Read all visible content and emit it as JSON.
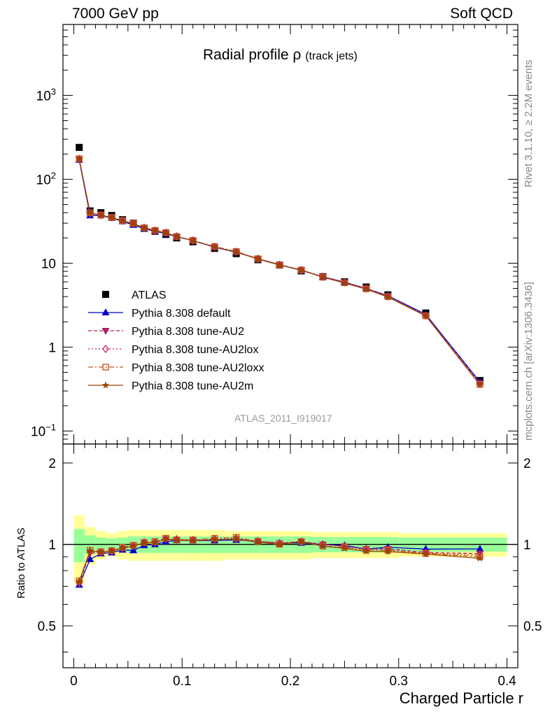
{
  "header": {
    "left": "7000 GeV pp",
    "right": "Soft QCD"
  },
  "plot_title": {
    "main": "Radial profile ρ",
    "sub": "(track jets)"
  },
  "watermark": "ATLAS_2011_I919017",
  "side_labels": {
    "rivet": "Rivet 3.1.10, ≥ 2.2M events",
    "ref": "mcplots.cern.ch [arXiv:1306.3436]"
  },
  "chart_data": {
    "type": "line",
    "xlabel": "Charged Particle r",
    "ylabel_ratio": "Ratio to ATLAS",
    "x_ticks": [
      "0",
      "0.1",
      "0.2",
      "0.3",
      "0.4"
    ],
    "xlim": [
      -0.01,
      0.41
    ],
    "main_ylim": [
      0.07,
      7000
    ],
    "main_yscale": "log",
    "main_y_ticks": [
      "10",
      "1",
      "10",
      "10",
      "10"
    ],
    "main_y_tick_exp": [
      "−1",
      "",
      "",
      "2",
      "3"
    ],
    "main_y_tick_values": [
      0.1,
      1,
      10,
      100,
      1000
    ],
    "ratio_ylim": [
      0.35,
      2.35
    ],
    "ratio_yscale": "log",
    "ratio_y_ticks": [
      "0.5",
      "1",
      "2"
    ],
    "x": [
      0.005,
      0.015,
      0.025,
      0.035,
      0.045,
      0.055,
      0.065,
      0.075,
      0.085,
      0.095,
      0.11,
      0.13,
      0.15,
      0.17,
      0.19,
      0.21,
      0.23,
      0.25,
      0.27,
      0.29,
      0.325,
      0.375
    ],
    "x_bins": [
      [
        0,
        0.01
      ],
      [
        0.01,
        0.02
      ],
      [
        0.02,
        0.03
      ],
      [
        0.03,
        0.04
      ],
      [
        0.04,
        0.05
      ],
      [
        0.05,
        0.06
      ],
      [
        0.06,
        0.07
      ],
      [
        0.07,
        0.08
      ],
      [
        0.08,
        0.09
      ],
      [
        0.09,
        0.1
      ],
      [
        0.1,
        0.12
      ],
      [
        0.12,
        0.14
      ],
      [
        0.14,
        0.16
      ],
      [
        0.16,
        0.18
      ],
      [
        0.18,
        0.2
      ],
      [
        0.2,
        0.22
      ],
      [
        0.22,
        0.24
      ],
      [
        0.24,
        0.26
      ],
      [
        0.26,
        0.28
      ],
      [
        0.28,
        0.3
      ],
      [
        0.3,
        0.35
      ],
      [
        0.35,
        0.4
      ]
    ],
    "series": [
      {
        "name": "ATLAS",
        "color": "#000000",
        "marker": "square",
        "values": [
          240,
          42,
          40,
          37,
          33,
          30,
          26,
          24,
          22,
          20,
          18,
          15,
          13,
          11,
          9.5,
          8.1,
          6.9,
          6.0,
          5.2,
          4.2,
          2.55,
          0.4
        ]
      },
      {
        "name": "Pythia 8.308 default",
        "color": "#0000cc",
        "marker": "triangle-up",
        "dash": "",
        "values": [
          170,
          37,
          37,
          34.5,
          31.5,
          28.5,
          25.8,
          24,
          22.5,
          20.7,
          18.6,
          15.5,
          13.5,
          11.3,
          9.6,
          8.2,
          6.9,
          5.95,
          5.0,
          4.1,
          2.45,
          0.385
        ]
      },
      {
        "name": "Pythia 8.308 tune-AU2",
        "color": "#aa2266",
        "marker": "triangle-down",
        "dash": "5,3",
        "values": [
          172,
          39,
          37.3,
          34.9,
          31.9,
          29.5,
          26.5,
          24.3,
          23,
          20.8,
          18.7,
          15.6,
          13.6,
          11.3,
          9.6,
          8.3,
          6.9,
          5.9,
          5.0,
          4.05,
          2.38,
          0.37
        ]
      },
      {
        "name": "Pythia 8.308 tune-AU2lox",
        "color": "#cc2255",
        "marker": "diamond",
        "dash": "2,3",
        "values": [
          174,
          39.5,
          37.5,
          35,
          32,
          29.6,
          26.5,
          24.5,
          23.1,
          20.9,
          18.7,
          15.7,
          13.7,
          11.3,
          9.6,
          8.3,
          6.9,
          5.9,
          5.0,
          4.0,
          2.37,
          0.365
        ]
      },
      {
        "name": "Pythia 8.308 tune-AU2loxx",
        "color": "#cc5522",
        "marker": "square-open",
        "dash": "7,3,2,3",
        "values": [
          176,
          40,
          37.6,
          35.1,
          32.2,
          29.8,
          26.4,
          24.6,
          23.2,
          20.8,
          18.7,
          15.8,
          13.8,
          11.3,
          9.5,
          8.3,
          6.8,
          5.85,
          4.95,
          4.0,
          2.36,
          0.36
        ]
      },
      {
        "name": "Pythia 8.308 tune-AU2m",
        "color": "#994400",
        "marker": "star",
        "dash": "",
        "values": [
          175,
          39.8,
          37.4,
          35,
          32,
          29.6,
          26.3,
          24.4,
          23,
          20.7,
          18.6,
          15.6,
          13.6,
          11.2,
          9.5,
          8.3,
          6.8,
          5.8,
          4.9,
          3.95,
          2.35,
          0.355
        ]
      }
    ],
    "ratio_bands": {
      "green_half": [
        0.14,
        0.08,
        0.06,
        0.05,
        0.06,
        0.07,
        0.07,
        0.07,
        0.07,
        0.07,
        0.07,
        0.07,
        0.07,
        0.07,
        0.07,
        0.07,
        0.065,
        0.065,
        0.065,
        0.065,
        0.06,
        0.06
      ],
      "yellow_half": [
        0.28,
        0.16,
        0.12,
        0.1,
        0.12,
        0.13,
        0.13,
        0.13,
        0.13,
        0.13,
        0.13,
        0.13,
        0.12,
        0.12,
        0.12,
        0.12,
        0.11,
        0.11,
        0.11,
        0.11,
        0.1,
        0.1
      ]
    }
  }
}
